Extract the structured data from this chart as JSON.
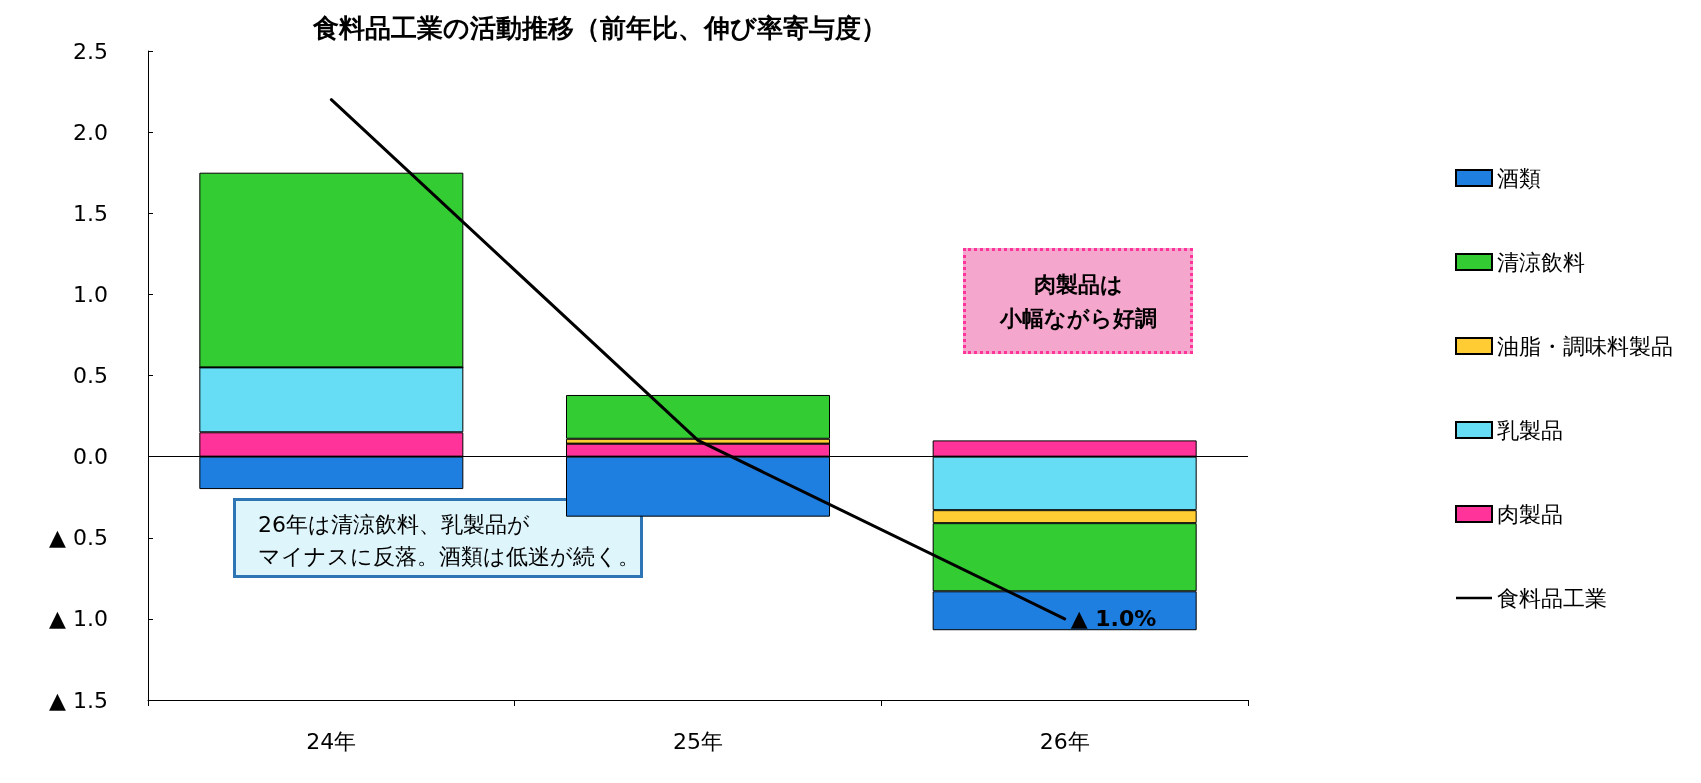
{
  "chart_data": {
    "type": "bar",
    "title": "食料品工業の活動推移（前年比、伸び率寄与度）",
    "categories": [
      "24年",
      "25年",
      "26年"
    ],
    "stacked": true,
    "legend": "right",
    "grid": false,
    "ref_lines": [
      {
        "axis": "y",
        "value": 0,
        "color": "#000000"
      }
    ],
    "ylim": [
      -1.5,
      2.5
    ],
    "yticks": [
      {
        "value": -1.5,
        "label": "▲ 1.5"
      },
      {
        "value": -1.0,
        "label": "▲ 1.0"
      },
      {
        "value": -0.5,
        "label": "▲ 0.5"
      },
      {
        "value": 0,
        "label": "0.0"
      },
      {
        "value": 0.5,
        "label": "0.5"
      },
      {
        "value": 1.0,
        "label": "1.0"
      },
      {
        "value": 1.5,
        "label": "1.5"
      },
      {
        "value": 2.0,
        "label": "2.0"
      },
      {
        "value": 2.5,
        "label": "2.5"
      }
    ],
    "series": [
      {
        "name": "肉製品",
        "color": "#ff3399",
        "values": [
          0.15,
          0.08,
          0.1
        ]
      },
      {
        "name": "乳製品",
        "color": "#66ddf5",
        "values": [
          0.4,
          0,
          -0.33
        ]
      },
      {
        "name": "油脂・調味料製品",
        "color": "#ffcc33",
        "values": [
          0,
          0.03,
          -0.08
        ]
      },
      {
        "name": "清涼飲料",
        "color": "#33cc33",
        "values": [
          1.2,
          0.27,
          -0.42
        ]
      },
      {
        "name": "酒類",
        "color": "#1f7fe0",
        "values": [
          -0.2,
          -0.37,
          -0.24
        ]
      },
      {
        "name": "食料品工業",
        "type": "line",
        "color": "#000000",
        "values": [
          2.2,
          0.1,
          -1.0
        ]
      }
    ],
    "annotations": [
      "肉製品は",
      "小幅ながら好調",
      "26年は清涼飲料、乳製品が",
      "マイナスに反落。酒類は低迷が続く。",
      {
        "text": "▲ 1.0%",
        "x": "26年",
        "y": -1.0
      }
    ]
  }
}
